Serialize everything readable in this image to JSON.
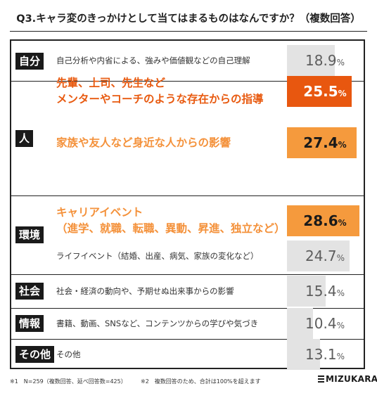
{
  "title": "Q3.キャラ変のきっかけとして当てはまるものはなんですか？（複数回答）",
  "chart_data": {
    "type": "bar",
    "orientation": "horizontal",
    "xlim": [
      0,
      30
    ],
    "unit": "%",
    "groups": [
      {
        "category": "自分",
        "items": [
          {
            "label_lines": [
              "自己分析や内省による、強みや価値観などの自己理解"
            ],
            "value": 18.9,
            "value_text": "18.9",
            "style": "grey"
          }
        ]
      },
      {
        "category": "人",
        "items": [
          {
            "label_lines": [
              "先輩、上司、先生など",
              "メンターやコーチのような存在からの指導"
            ],
            "value": 25.5,
            "value_text": "25.5",
            "style": "red"
          },
          {
            "label_lines": [
              "家族や友人など身近な人からの影響"
            ],
            "value": 27.4,
            "value_text": "27.4",
            "style": "orange"
          }
        ]
      },
      {
        "category": "環境",
        "items": [
          {
            "label_lines": [
              "キャリアイベント",
              "（進学、就職、転職、異動、昇進、独立など）"
            ],
            "value": 28.6,
            "value_text": "28.6",
            "style": "orange"
          },
          {
            "label_lines": [
              "ライフイベント（結婚、出産、病気、家族の変化など）"
            ],
            "value": 24.7,
            "value_text": "24.7",
            "style": "grey"
          }
        ]
      },
      {
        "category": "社会",
        "items": [
          {
            "label_lines": [
              "社会・経済の動向や、予期せぬ出来事からの影響"
            ],
            "value": 15.4,
            "value_text": "15.4",
            "style": "grey"
          }
        ]
      },
      {
        "category": "情報",
        "items": [
          {
            "label_lines": [
              "書籍、動画、SNSなど、コンテンツからの学びや気づき"
            ],
            "value": 10.4,
            "value_text": "10.4",
            "style": "grey"
          }
        ]
      },
      {
        "category": "その他",
        "items": [
          {
            "label_lines": [
              "その他"
            ],
            "value": 13.1,
            "value_text": "13.1",
            "style": "grey"
          }
        ]
      }
    ]
  },
  "footnotes": {
    "note1": "※1　N=259（複数回答、延べ回答数=425）",
    "note2": "※2　複数回答のため、合計は100%を超えます"
  },
  "logo": "MIZUKARA"
}
